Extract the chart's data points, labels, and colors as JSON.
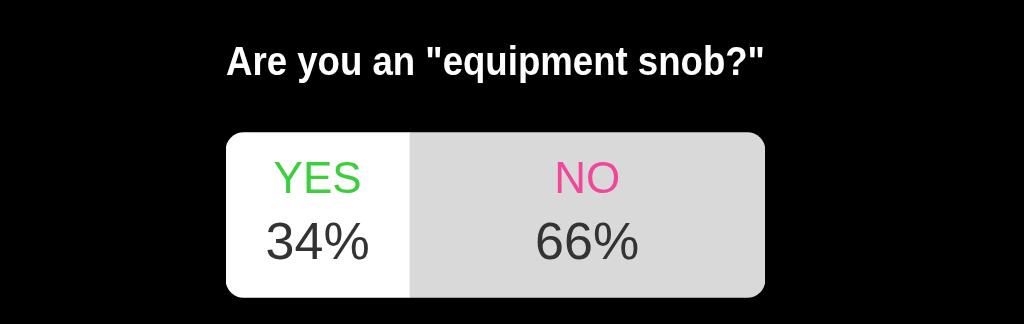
{
  "chart_data": {
    "type": "bar",
    "orientation": "horizontal",
    "stacked": true,
    "title": "Are you an \"equipment snob?\"",
    "categories": [
      null
    ],
    "xlim": [
      0,
      100
    ],
    "legend": false,
    "series": [
      {
        "name": "YES",
        "color": "#ffffff",
        "values": [
          34
        ],
        "value_labels": [
          "34%"
        ]
      },
      {
        "name": "NO",
        "color": "#d9d9d9",
        "values": [
          66
        ],
        "value_labels": [
          "66%"
        ]
      }
    ]
  }
}
